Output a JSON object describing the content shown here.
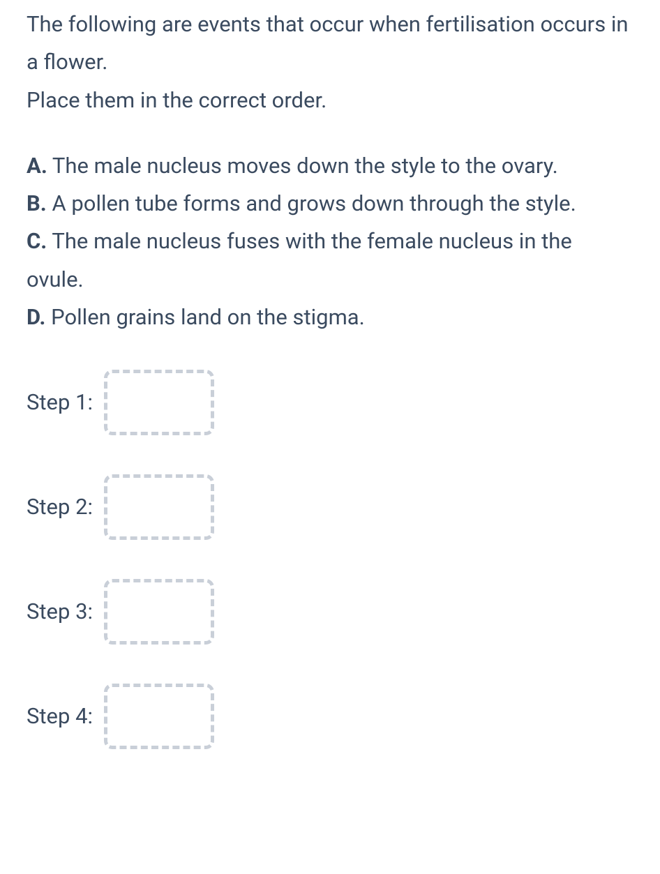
{
  "intro": {
    "line1": "The following are events that occur when fertilisation occurs in a flower.",
    "line2": "Place them in the correct order."
  },
  "options": [
    {
      "letter": "A.",
      "text": " The male nucleus moves down the style to the ovary."
    },
    {
      "letter": "B.",
      "text": " A pollen tube forms and grows down through the style."
    },
    {
      "letter": "C.",
      "text": " The male nucleus fuses with the female nucleus in the ovule."
    },
    {
      "letter": "D.",
      "text": " Pollen grains land on the stigma."
    }
  ],
  "steps": [
    {
      "label": "Step 1:"
    },
    {
      "label": "Step 2:"
    },
    {
      "label": "Step 3:"
    },
    {
      "label": "Step 4:"
    }
  ],
  "colors": {
    "text": "#3a4a5f",
    "dashed_border": "#c9cfd8",
    "background": "#ffffff"
  }
}
